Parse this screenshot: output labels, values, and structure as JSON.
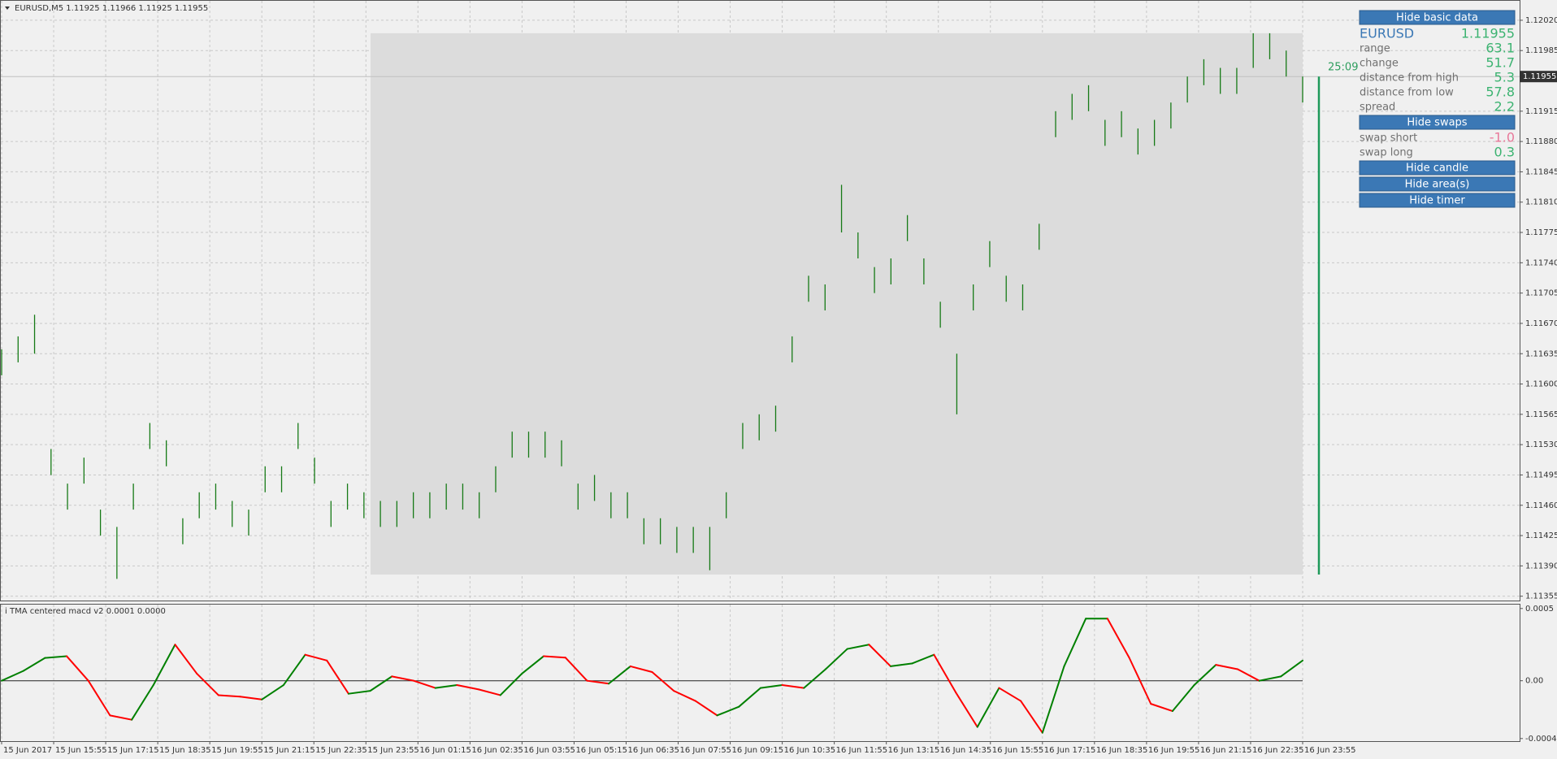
{
  "chart_data": [
    {
      "type": "ohlc",
      "title": "EURUSD,M5  1.11925 1.11966 1.11925 1.11955",
      "color": "#167a16",
      "high": [
        1.1164,
        1.11655,
        1.1168,
        1.11525,
        1.11485,
        1.11515,
        1.11455,
        1.11435,
        1.11485,
        1.11555,
        1.11535,
        1.11445,
        1.11475,
        1.11485,
        1.11465,
        1.11455,
        1.11505,
        1.11505,
        1.11555,
        1.11515,
        1.11465,
        1.11485,
        1.11475,
        1.11465,
        1.11465,
        1.11475,
        1.11475,
        1.11485,
        1.11485,
        1.11475,
        1.11505,
        1.11545,
        1.11545,
        1.11545,
        1.11535,
        1.11485,
        1.11495,
        1.11475,
        1.11475,
        1.11445,
        1.11445,
        1.11435,
        1.11435,
        1.11435,
        1.11475,
        1.11555,
        1.11565,
        1.11575,
        1.11655,
        1.11725,
        1.11715,
        1.1183,
        1.11775,
        1.11735,
        1.11745,
        1.11795,
        1.11745,
        1.11695,
        1.11635,
        1.11715,
        1.11765,
        1.11725,
        1.11715,
        1.11785,
        1.11915,
        1.11935,
        1.11945,
        1.11905,
        1.11915,
        1.11895,
        1.11905,
        1.11925,
        1.11955,
        1.11975,
        1.11965,
        1.11965,
        1.12005,
        1.12005,
        1.11985,
        1.11955
      ],
      "low": [
        1.1161,
        1.11625,
        1.11635,
        1.11495,
        1.11455,
        1.11485,
        1.11425,
        1.11375,
        1.11455,
        1.11525,
        1.11505,
        1.11415,
        1.11445,
        1.11455,
        1.11435,
        1.11425,
        1.11475,
        1.11475,
        1.11525,
        1.11485,
        1.11435,
        1.11455,
        1.11445,
        1.11435,
        1.11435,
        1.11445,
        1.11445,
        1.11455,
        1.11455,
        1.11445,
        1.11475,
        1.11515,
        1.11515,
        1.11515,
        1.11505,
        1.11455,
        1.11465,
        1.11445,
        1.11445,
        1.11415,
        1.11415,
        1.11405,
        1.11405,
        1.11385,
        1.11445,
        1.11525,
        1.11535,
        1.11545,
        1.11625,
        1.11695,
        1.11685,
        1.11775,
        1.11745,
        1.11705,
        1.11715,
        1.11765,
        1.11715,
        1.11665,
        1.11565,
        1.11685,
        1.11735,
        1.11695,
        1.11685,
        1.11755,
        1.11885,
        1.11905,
        1.11915,
        1.11875,
        1.11885,
        1.11865,
        1.11875,
        1.11895,
        1.11925,
        1.11945,
        1.11935,
        1.11935,
        1.11965,
        1.11975,
        1.11955,
        1.11925
      ],
      "range_area": {
        "high": 1.12005,
        "low": 1.1138,
        "color": "#dcdcdc"
      },
      "current_bar": {
        "high": 1.11955,
        "low": 1.1138,
        "color": "#1e9a5a"
      },
      "last_price": {
        "value": 1.11955,
        "label": "1.11955"
      },
      "timer": "25:09",
      "ylim": [
        1.1135,
        1.12034
      ],
      "yticks": [
        {
          "value": 1.1202,
          "label": "1.12020"
        },
        {
          "value": 1.11985,
          "label": "1.11985"
        },
        {
          "value": 1.11915,
          "label": "1.11915"
        },
        {
          "value": 1.1188,
          "label": "1.11880"
        },
        {
          "value": 1.11845,
          "label": "1.11845"
        },
        {
          "value": 1.1181,
          "label": "1.11810"
        },
        {
          "value": 1.11775,
          "label": "1.11775"
        },
        {
          "value": 1.1174,
          "label": "1.11740"
        },
        {
          "value": 1.11705,
          "label": "1.11705"
        },
        {
          "value": 1.1167,
          "label": "1.11670"
        },
        {
          "value": 1.11635,
          "label": "1.11635"
        },
        {
          "value": 1.116,
          "label": "1.11600"
        },
        {
          "value": 1.11565,
          "label": "1.11565"
        },
        {
          "value": 1.1153,
          "label": "1.11530"
        },
        {
          "value": 1.11495,
          "label": "1.11495"
        },
        {
          "value": 1.1146,
          "label": "1.11460"
        },
        {
          "value": 1.11425,
          "label": "1.11425"
        },
        {
          "value": 1.1139,
          "label": "1.11390"
        },
        {
          "value": 1.11355,
          "label": "1.11355"
        }
      ],
      "grid": true
    },
    {
      "type": "line",
      "title": "i TMA centered macd v2 0.0001 0.0000",
      "values": [
        0,
        6.8e-05,
        0.000158,
        0.00017,
        0,
        -0.00024,
        -0.00027,
        -3e-05,
        0.00025,
        5e-05,
        -0.0001,
        -0.00011,
        -0.00013,
        -3e-05,
        0.00018,
        0.00014,
        -9e-05,
        -7e-05,
        3e-05,
        0,
        -5e-05,
        -3e-05,
        -6e-05,
        -0.0001,
        5e-05,
        0.00017,
        0.00016,
        0,
        -2e-05,
        0.0001,
        6e-05,
        -7e-05,
        -0.00014,
        -0.00024,
        -0.00018,
        -5e-05,
        -3e-05,
        -5e-05,
        8e-05,
        0.00022,
        0.00025,
        0.0001,
        0.00012,
        0.00018,
        -8e-05,
        -0.00032,
        -5e-05,
        -0.00014,
        -0.00036,
        0.0001,
        0.00043,
        0.00043,
        0.00016,
        -0.00016,
        -0.00021,
        -3e-05,
        0.00011,
        8e-05,
        0,
        3e-05,
        0.00014
      ],
      "up_color": "#008000",
      "down_color": "#ff0000",
      "ylim": [
        -0.000418,
        0.000527
      ],
      "yticks": [
        {
          "value": 0.0005,
          "label": "0.0005"
        },
        {
          "value": 0,
          "label": "0.00"
        },
        {
          "value": -0.0004,
          "label": "-0.0004"
        }
      ],
      "zero_line": true,
      "grid": true,
      "time_labels": [
        "15 Jun 2017",
        "15 Jun 15:55",
        "15 Jun 17:15",
        "15 Jun 18:35",
        "15 Jun 19:55",
        "15 Jun 21:15",
        "15 Jun 22:35",
        "15 Jun 23:55",
        "16 Jun 01:15",
        "16 Jun 02:35",
        "16 Jun 03:55",
        "16 Jun 05:15",
        "16 Jun 06:35",
        "16 Jun 07:55",
        "16 Jun 09:15",
        "16 Jun 10:35",
        "16 Jun 11:55",
        "16 Jun 13:15",
        "16 Jun 14:35",
        "16 Jun 15:55",
        "16 Jun 17:15",
        "16 Jun 18:35",
        "16 Jun 19:55",
        "16 Jun 21:15",
        "16 Jun 22:35",
        "16 Jun 23:55"
      ]
    }
  ],
  "panel": {
    "buttons": [
      "Hide basic data",
      "Hide swaps",
      "Hide candle",
      "Hide area(s)",
      "Hide timer"
    ],
    "symbol": "EURUSD",
    "price": "1.11955",
    "basic_rows": [
      {
        "label": "range",
        "value": "63.1",
        "color": "#3cb371"
      },
      {
        "label": "change",
        "value": "51.7",
        "color": "#3cb371"
      },
      {
        "label": "distance from high",
        "value": "5.3",
        "color": "#3cb371"
      },
      {
        "label": "distance from low",
        "value": "57.8",
        "color": "#3cb371"
      },
      {
        "label": "spread",
        "value": "2.2",
        "color": "#3cb371"
      }
    ],
    "swap_rows": [
      {
        "label": "swap short",
        "value": "-1.0",
        "color": "#e8799a"
      },
      {
        "label": "swap long",
        "value": "0.3",
        "color": "#3cb371"
      }
    ]
  }
}
